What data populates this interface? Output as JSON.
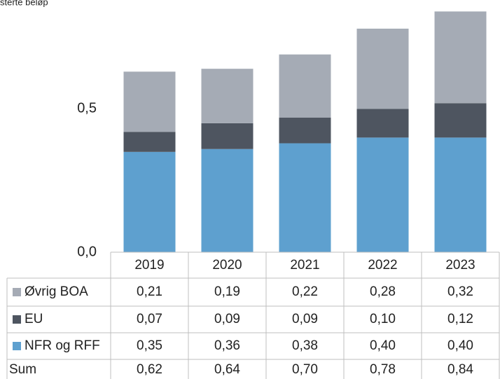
{
  "chart_data": {
    "type": "stacked_bar",
    "title": "sterte beløp",
    "categories": [
      "2019",
      "2020",
      "2021",
      "2022",
      "2023"
    ],
    "series": [
      {
        "name": "Øvrig BOA",
        "color": "#a5abb5",
        "values": [
          0.21,
          0.19,
          0.22,
          0.28,
          0.32
        ],
        "value_labels": [
          "0,21",
          "0,19",
          "0,22",
          "0,28",
          "0,32"
        ]
      },
      {
        "name": "EU",
        "color": "#4e5560",
        "values": [
          0.07,
          0.09,
          0.09,
          0.1,
          0.12
        ],
        "value_labels": [
          "0,07",
          "0,09",
          "0,09",
          "0,10",
          "0,12"
        ]
      },
      {
        "name": "NFR og RFF",
        "color": "#5ea0cf",
        "values": [
          0.35,
          0.36,
          0.38,
          0.4,
          0.4
        ],
        "value_labels": [
          "0,35",
          "0,36",
          "0,38",
          "0,40",
          "0,40"
        ]
      }
    ],
    "sum": {
      "label": "Sum",
      "values": [
        0.62,
        0.64,
        0.7,
        0.78,
        0.84
      ],
      "value_labels": [
        "0,62",
        "0,64",
        "0,70",
        "0,78",
        "0,84"
      ]
    },
    "ylim": [
      0,
      0.88
    ],
    "yticks": [
      {
        "value": 0,
        "label": "0,0"
      },
      {
        "value": 0.5,
        "label": "0,5"
      }
    ]
  }
}
